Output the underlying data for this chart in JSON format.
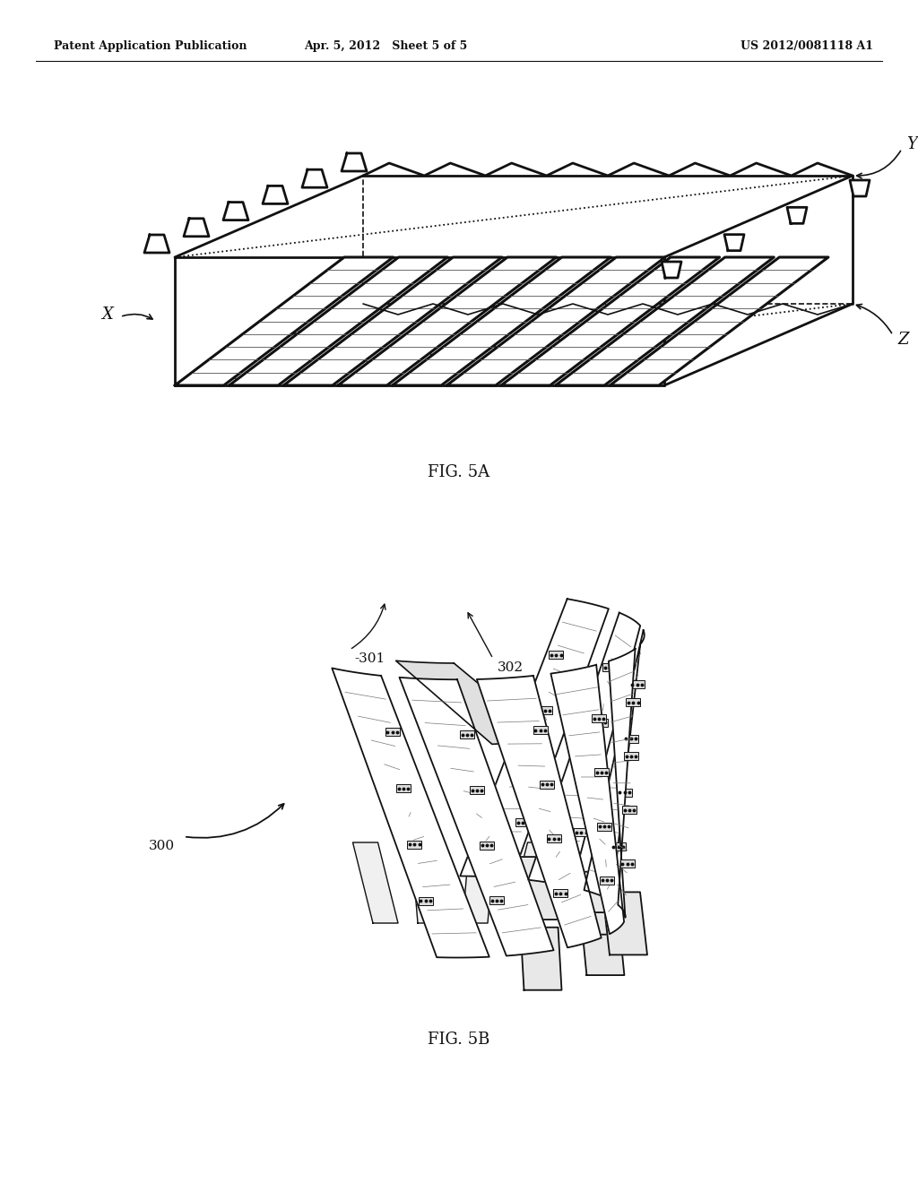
{
  "header_left": "Patent Application Publication",
  "header_mid": "Apr. 5, 2012   Sheet 5 of 5",
  "header_right": "US 2012/0081118 A1",
  "fig5a_label": "FIG. 5A",
  "fig5b_label": "FIG. 5B",
  "label_x": "X",
  "label_y": "Y",
  "label_z": "Z",
  "label_300": "300",
  "label_301": "-301",
  "label_302": "302",
  "bg_color": "#ffffff",
  "line_color": "#111111"
}
